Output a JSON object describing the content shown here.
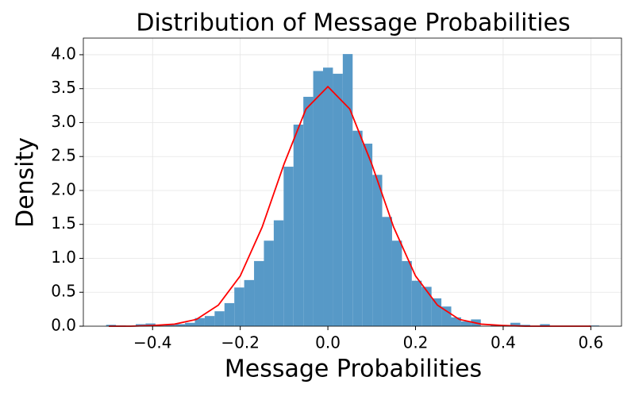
{
  "chart_data": {
    "type": "histogram",
    "title": "Distribution of Message Probabilities",
    "x_label": "Message Probabilities",
    "y_label": "Density",
    "color": "#5799c7",
    "bins": [
      -0.506,
      -0.4835,
      -0.461,
      -0.4385,
      -0.416,
      -0.3935,
      -0.371,
      -0.3485,
      -0.326,
      -0.3035,
      -0.281,
      -0.2585,
      -0.236,
      -0.2135,
      -0.191,
      -0.1685,
      -0.146,
      -0.1235,
      -0.101,
      -0.0785,
      -0.056,
      -0.0335,
      -0.011,
      0.0115,
      0.034,
      0.0565,
      0.079,
      0.1015,
      0.124,
      0.1465,
      0.169,
      0.1915,
      0.214,
      0.2365,
      0.259,
      0.2815,
      0.304,
      0.3265,
      0.349,
      0.3715,
      0.394,
      0.4165,
      0.439,
      0.4615,
      0.484,
      0.5065,
      0.529,
      0.5515,
      0.574,
      0.5965,
      0.619
    ],
    "values": [
      0.02,
      0.01,
      0,
      0.03,
      0.04,
      0.01,
      0.02,
      0.03,
      0.05,
      0.12,
      0.15,
      0.22,
      0.34,
      0.57,
      0.68,
      0.96,
      1.26,
      1.56,
      2.35,
      2.97,
      3.38,
      3.76,
      3.81,
      3.72,
      4.01,
      2.88,
      2.69,
      2.23,
      1.61,
      1.26,
      0.96,
      0.67,
      0.58,
      0.41,
      0.29,
      0.13,
      0.07,
      0.1,
      0,
      0.02,
      0,
      0.05,
      0.02,
      0,
      0.03,
      0,
      0,
      0,
      0,
      0.01
    ],
    "curve": {
      "color": "#ff0000",
      "x": [
        -0.5,
        -0.45,
        -0.4,
        -0.35,
        -0.3,
        -0.25,
        -0.2,
        -0.15,
        -0.1,
        -0.05,
        0,
        0.05,
        0.1,
        0.15,
        0.2,
        0.25,
        0.3,
        0.35,
        0.4,
        0.45,
        0.5,
        0.55,
        0.6
      ],
      "values": [
        0,
        0,
        0.01,
        0.03,
        0.1,
        0.31,
        0.74,
        1.46,
        2.39,
        3.2,
        3.53,
        3.2,
        2.39,
        1.46,
        0.74,
        0.31,
        0.1,
        0.03,
        0.01,
        0,
        0,
        0,
        0
      ]
    },
    "xlim": [
      -0.558,
      0.67
    ],
    "ylim": [
      0,
      4.245
    ],
    "xticks": [
      {
        "value": -0.4,
        "label": "−0.4"
      },
      {
        "value": -0.2,
        "label": "−0.2"
      },
      {
        "value": 0,
        "label": "0.0"
      },
      {
        "value": 0.2,
        "label": "0.2"
      },
      {
        "value": 0.4,
        "label": "0.4"
      },
      {
        "value": 0.6,
        "label": "0.6"
      }
    ],
    "yticks": [
      {
        "value": 0,
        "label": "0.0"
      },
      {
        "value": 0.5,
        "label": "0.5"
      },
      {
        "value": 1,
        "label": "1.0"
      },
      {
        "value": 1.5,
        "label": "1.5"
      },
      {
        "value": 2,
        "label": "2.0"
      },
      {
        "value": 2.5,
        "label": "2.5"
      },
      {
        "value": 3,
        "label": "3.0"
      },
      {
        "value": 3.5,
        "label": "3.5"
      },
      {
        "value": 4,
        "label": "4.0"
      }
    ],
    "grid": true
  }
}
